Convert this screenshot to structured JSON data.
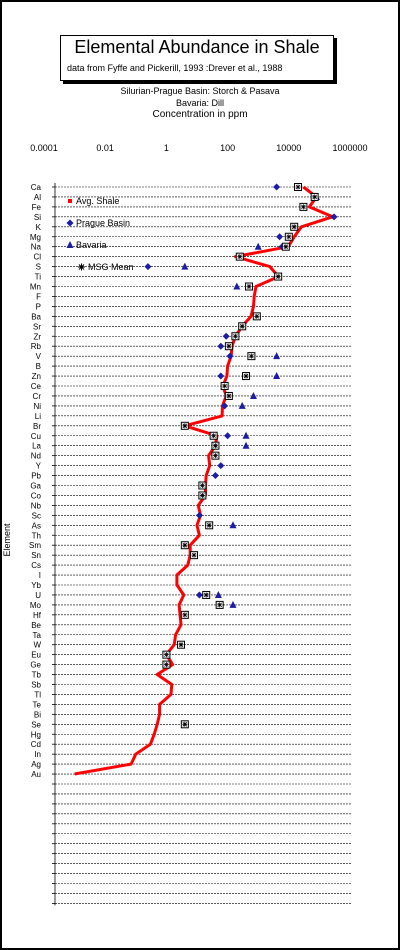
{
  "title": "Elemental  Abundance in Shale",
  "subtitle": "data from Fyffe and Pickerill, 1993 :Drever et al., 1988",
  "notes": [
    "Silurian-Prague Basin: Storch & Pasava",
    "Bavaria: Dill",
    "Concentration in ppm"
  ],
  "chart_data": {
    "type": "scatter",
    "x_scale": "log",
    "xlim": [
      0.0001,
      1000000
    ],
    "x_ticks": [
      "0.0001",
      "0.01",
      "1",
      "100",
      "10000",
      "1000000"
    ],
    "ylabel": "Element",
    "categories": [
      "Ca",
      "Al",
      "Fe",
      "Si",
      "K",
      "Mg",
      "Na",
      "Cl",
      "S",
      "Ti",
      "Mn",
      "F",
      "P",
      "Ba",
      "Sr",
      "Zr",
      "Rb",
      "V",
      "B",
      "Zn",
      "Ce",
      "Cr",
      "Ni",
      "Li",
      "Br",
      "Cu",
      "La",
      "Nd",
      "Y",
      "Pb",
      "Ga",
      "Co",
      "Nb",
      "Sc",
      "As",
      "Th",
      "Sm",
      "Sn",
      "Cs",
      "I",
      "Yb",
      "U",
      "Mo",
      "Hf",
      "Be",
      "Ta",
      "W",
      "Eu",
      "Ge",
      "Tb",
      "Sb",
      "Tl",
      "Te",
      "Bi",
      "Se",
      "Hg",
      "Cd",
      "In",
      "Ag",
      "Au"
    ],
    "grid": true,
    "legend_position": "top-left",
    "series": [
      {
        "name": "Avg. Shale",
        "style": "line",
        "color": "#ff0000",
        "values": [
          30000,
          80000,
          47000,
          270000,
          26000,
          15000,
          9600,
          180,
          2400,
          4600,
          850,
          740,
          700,
          580,
          300,
          180,
          140,
          130,
          100,
          95,
          70,
          90,
          68,
          66,
          4,
          45,
          40,
          24,
          26,
          20,
          19,
          19,
          11,
          13,
          10,
          12,
          6,
          6,
          5,
          2.2,
          2.2,
          3.7,
          2.6,
          2.8,
          3,
          2,
          1.8,
          1,
          1.6,
          0.5,
          1.5,
          1.4,
          0.6,
          0.6,
          0.5,
          0.4,
          0.3,
          0.1,
          0.07,
          0.001
        ]
      },
      {
        "name": "Prague Basin",
        "style": "diamond",
        "color": "#1c1ca6",
        "values": [
          4000,
          70000,
          30000,
          300000,
          15000,
          5000,
          6000,
          null,
          0.25,
          4000,
          null,
          null,
          null,
          null,
          null,
          90,
          60,
          120,
          null,
          60,
          null,
          100,
          80,
          null,
          null,
          100,
          null,
          null,
          60,
          40,
          15,
          15,
          null,
          12,
          null,
          null,
          null,
          null,
          null,
          null,
          null,
          12,
          60,
          null,
          null,
          null,
          null,
          null,
          null,
          null,
          null,
          null,
          null,
          null,
          null,
          null,
          null,
          null,
          null,
          null
        ]
      },
      {
        "name": "Bavaria",
        "style": "triangle",
        "color": "#1c1ca6",
        "values": [
          null,
          80000,
          null,
          null,
          null,
          null,
          1000,
          null,
          4,
          null,
          200,
          null,
          null,
          null,
          null,
          null,
          null,
          4000,
          null,
          4000,
          null,
          700,
          300,
          null,
          null,
          400,
          400,
          null,
          null,
          null,
          null,
          null,
          null,
          null,
          150,
          null,
          null,
          null,
          null,
          null,
          null,
          50,
          150,
          null,
          null,
          null,
          null,
          null,
          null,
          null,
          null,
          null,
          null,
          null,
          null,
          null,
          null,
          null,
          null,
          null
        ]
      },
      {
        "name": "MSG Mean",
        "style": "boxed-star",
        "color": "#000000",
        "values": [
          20000,
          70000,
          30000,
          null,
          15000,
          10000,
          8000,
          250,
          null,
          4500,
          500,
          null,
          null,
          900,
          300,
          180,
          110,
          600,
          null,
          400,
          80,
          110,
          null,
          null,
          4,
          35,
          40,
          40,
          null,
          null,
          15,
          15,
          null,
          null,
          25,
          null,
          4,
          8,
          null,
          null,
          null,
          20,
          55,
          4,
          null,
          null,
          3,
          1,
          1,
          null,
          null,
          null,
          null,
          null,
          4,
          null,
          null,
          null,
          null,
          null
        ]
      }
    ]
  }
}
